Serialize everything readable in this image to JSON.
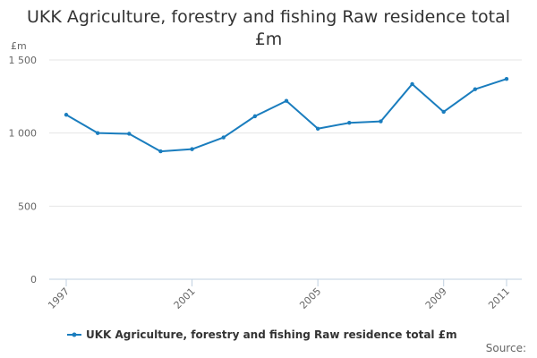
{
  "chart_data": {
    "type": "line",
    "title_lines": [
      "UKK Agriculture, forestry and fishing Raw residence total",
      "£m"
    ],
    "ylabel": "£m",
    "xlabel": "",
    "ylim": [
      0,
      1500
    ],
    "yticks": [
      0,
      500,
      1000,
      1500
    ],
    "ytick_labels": [
      "0",
      "500",
      "1 000",
      "1 500"
    ],
    "x_tick_years": [
      1997,
      2001,
      2005,
      2009,
      2011
    ],
    "x_tick_labels": [
      "1997",
      "2001",
      "2005",
      "2009",
      "2011"
    ],
    "x": [
      1997,
      1998,
      1999,
      2000,
      2001,
      2002,
      2003,
      2004,
      2005,
      2006,
      2007,
      2008,
      2009,
      2010,
      2011
    ],
    "series": [
      {
        "name": "UKK Agriculture, forestry and fishing Raw residence total £m",
        "color": "#1a7dbe",
        "values": [
          1125,
          1000,
          995,
          875,
          890,
          970,
          1115,
          1220,
          1030,
          1070,
          1080,
          1335,
          1145,
          1300,
          1370
        ]
      }
    ],
    "legend_position": "bottom",
    "grid": true
  },
  "source_label": "Source:"
}
